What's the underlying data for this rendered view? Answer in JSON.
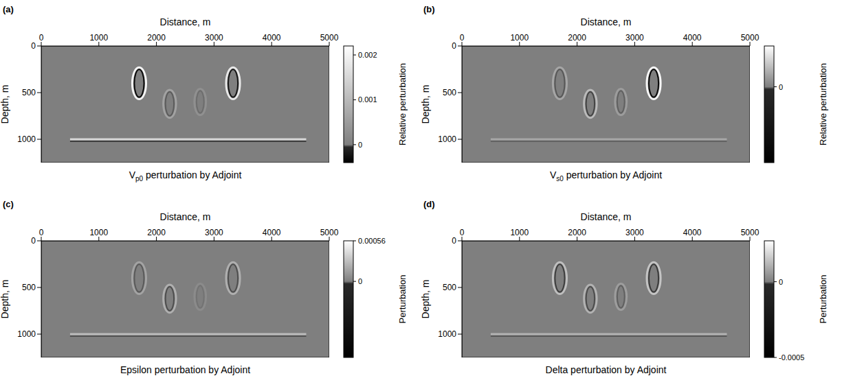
{
  "chart_data": [
    {
      "type": "heatmap",
      "label": "(a)",
      "title": {
        "base": "V",
        "subscript": "p0",
        "text": "perturbation by Adjoint"
      },
      "x_label": "Distance, m",
      "y_label": "Depth, m",
      "xlim": [
        0,
        5000
      ],
      "xticks": [
        0,
        1000,
        2000,
        3000,
        4000,
        5000
      ],
      "ylim": [
        0,
        1250
      ],
      "yticks": [
        0,
        500,
        1000
      ],
      "colorbar": {
        "label": "Relative perturbation",
        "range": [
          -0.0004,
          0.0022
        ],
        "ticks": [
          0,
          0.001,
          0.002
        ]
      },
      "anomalies": [
        {
          "x": 1700,
          "z": 400,
          "rx": 120,
          "rz": 170,
          "amplitude": 0.002
        },
        {
          "x": 2230,
          "z": 620,
          "rx": 110,
          "rz": 150,
          "amplitude": 0.0006
        },
        {
          "x": 2760,
          "z": 600,
          "rx": 100,
          "rz": 140,
          "amplitude": 0.0003
        },
        {
          "x": 3330,
          "z": 400,
          "rx": 120,
          "rz": 170,
          "amplitude": 0.0018
        }
      ],
      "reflector": {
        "x": [
          500,
          4600
        ],
        "z": 1000,
        "amplitude": 0.0015
      }
    },
    {
      "type": "heatmap",
      "label": "(b)",
      "title": {
        "base": "V",
        "subscript": "s0",
        "text": "perturbation by Adjoint"
      },
      "x_label": "Distance, m",
      "y_label": "Depth, m",
      "xlim": [
        0,
        5000
      ],
      "xticks": [
        0,
        1000,
        2000,
        3000,
        4000,
        5000
      ],
      "ylim": [
        0,
        1250
      ],
      "yticks": [
        0,
        500,
        1000
      ],
      "colorbar": {
        "label": "Relative perturbation",
        "range": [
          -0.0013,
          0.0007
        ],
        "ticks": [
          0
        ]
      },
      "anomalies": [
        {
          "x": 1700,
          "z": 400,
          "rx": 120,
          "rz": 170,
          "amplitude": 0.0004
        },
        {
          "x": 2230,
          "z": 620,
          "rx": 110,
          "rz": 150,
          "amplitude": 0.0006
        },
        {
          "x": 2760,
          "z": 600,
          "rx": 100,
          "rz": 140,
          "amplitude": 0.0003
        },
        {
          "x": 3330,
          "z": 400,
          "rx": 120,
          "rz": 170,
          "amplitude": 0.0012
        }
      ],
      "reflector": {
        "x": [
          500,
          4600
        ],
        "z": 1000,
        "amplitude": 0.0004
      }
    },
    {
      "type": "heatmap",
      "label": "(c)",
      "title": {
        "text": "Epsilon perturbation by Adjoint"
      },
      "x_label": "Distance, m",
      "y_label": "Depth, m",
      "xlim": [
        0,
        5000
      ],
      "xticks": [
        0,
        1000,
        2000,
        3000,
        4000,
        5000
      ],
      "ylim": [
        0,
        1250
      ],
      "yticks": [
        0,
        500,
        1000
      ],
      "colorbar": {
        "label": "Perturbation",
        "range": [
          -0.00105,
          0.00056
        ],
        "ticks": [
          0,
          0.00056
        ]
      },
      "anomalies": [
        {
          "x": 1700,
          "z": 400,
          "rx": 120,
          "rz": 170,
          "amplitude": 0.0003
        },
        {
          "x": 2230,
          "z": 620,
          "rx": 110,
          "rz": 150,
          "amplitude": 0.0004
        },
        {
          "x": 2760,
          "z": 600,
          "rx": 100,
          "rz": 140,
          "amplitude": 0.0001
        },
        {
          "x": 3330,
          "z": 400,
          "rx": 120,
          "rz": 170,
          "amplitude": 0.0004
        }
      ],
      "reflector": {
        "x": [
          500,
          4600
        ],
        "z": 1000,
        "amplitude": 0.0005
      }
    },
    {
      "type": "heatmap",
      "label": "(d)",
      "title": {
        "text": "Delta perturbation by Adjoint"
      },
      "x_label": "Distance, m",
      "y_label": "Depth, m",
      "xlim": [
        0,
        5000
      ],
      "xticks": [
        0,
        1000,
        2000,
        3000,
        4000,
        5000
      ],
      "ylim": [
        0,
        1250
      ],
      "yticks": [
        0,
        500,
        1000
      ],
      "colorbar": {
        "label": "Perturbation",
        "range": [
          -0.0005,
          0.00027
        ],
        "ticks": [
          0,
          -0.0005
        ]
      },
      "anomalies": [
        {
          "x": 1700,
          "z": 400,
          "rx": 120,
          "rz": 170,
          "amplitude": 0.00025
        },
        {
          "x": 2230,
          "z": 620,
          "rx": 110,
          "rz": 150,
          "amplitude": 0.0002
        },
        {
          "x": 2760,
          "z": 600,
          "rx": 100,
          "rz": 140,
          "amplitude": 0.00012
        },
        {
          "x": 3330,
          "z": 400,
          "rx": 120,
          "rz": 170,
          "amplitude": 0.00027
        }
      ],
      "reflector": {
        "x": [
          500,
          4600
        ],
        "z": 1000,
        "amplitude": 0.0002
      }
    }
  ]
}
